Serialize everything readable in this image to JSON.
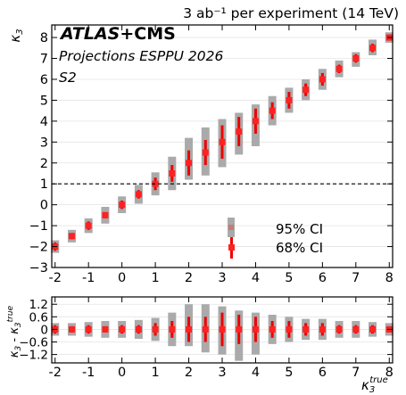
{
  "header": {
    "top_right_label": "3 ab⁻¹ per experiment (14 TeV)",
    "atlas": "ATLAS",
    "plus_cms": "+CMS",
    "projections": "Projections ESPPU 2026",
    "scenario": "S2"
  },
  "axes": {
    "top_ylabel": "κ",
    "top_ylabel_sub": "3",
    "bottom_ylabel_main": "κ",
    "bottom_ylabel_sub": "3",
    "bottom_ylabel_minus": " - κ",
    "bottom_ylabel_sub2": "3",
    "bottom_ylabel_sup2": "true",
    "xlabel_main": "κ",
    "xlabel_sub": "3",
    "xlabel_sup": "true"
  },
  "legend": {
    "ci95": "95% CI",
    "ci68": "68% CI"
  },
  "colors": {
    "ci95": "#aaaaaa",
    "ci68": "#ee0000",
    "marker": "#ff2222",
    "hline": "#000000"
  },
  "chart_data": [
    {
      "type": "scatter",
      "panel": "main",
      "x": [
        -2,
        -1.5,
        -1,
        -0.5,
        0,
        0.5,
        1,
        1.5,
        2,
        2.5,
        3,
        3.5,
        4,
        4.5,
        5,
        5.5,
        6,
        6.5,
        7,
        7.5,
        8
      ],
      "y": [
        -2,
        -1.5,
        -1,
        -0.5,
        0,
        0.5,
        1,
        1.5,
        2,
        2.5,
        3,
        3.5,
        4,
        4.5,
        5,
        5.5,
        6,
        6.5,
        7,
        7.5,
        8
      ],
      "ci68": [
        [
          -2.2,
          -1.8
        ],
        [
          -1.65,
          -1.35
        ],
        [
          -1.2,
          -0.8
        ],
        [
          -0.65,
          -0.35
        ],
        [
          -0.2,
          0.2
        ],
        [
          0.3,
          0.7
        ],
        [
          0.7,
          1.3
        ],
        [
          1.1,
          1.9
        ],
        [
          1.4,
          2.6
        ],
        [
          1.9,
          3.1
        ],
        [
          2.2,
          3.8
        ],
        [
          2.8,
          4.2
        ],
        [
          3.4,
          4.6
        ],
        [
          4.1,
          4.9
        ],
        [
          4.6,
          5.4
        ],
        [
          5.2,
          5.8
        ],
        [
          5.7,
          6.3
        ],
        [
          6.3,
          6.7
        ],
        [
          6.8,
          7.2
        ],
        [
          7.3,
          7.7
        ],
        [
          7.85,
          8.15
        ]
      ],
      "ci95": [
        [
          -2.3,
          -1.7
        ],
        [
          -1.8,
          -1.2
        ],
        [
          -1.35,
          -0.65
        ],
        [
          -0.9,
          -0.1
        ],
        [
          -0.4,
          0.4
        ],
        [
          0.05,
          0.95
        ],
        [
          0.45,
          1.55
        ],
        [
          0.7,
          2.3
        ],
        [
          1.2,
          3.2
        ],
        [
          1.4,
          3.7
        ],
        [
          1.8,
          4.1
        ],
        [
          2.4,
          4.4
        ],
        [
          2.8,
          4.8
        ],
        [
          3.8,
          5.2
        ],
        [
          4.4,
          5.6
        ],
        [
          5.0,
          6.0
        ],
        [
          5.5,
          6.5
        ],
        [
          6.1,
          6.9
        ],
        [
          6.6,
          7.3
        ],
        [
          7.15,
          7.9
        ],
        [
          7.75,
          8.25
        ]
      ],
      "xlim": [
        -2.1,
        8.1
      ],
      "ylim": [
        -3,
        8.6
      ],
      "yticks": [
        -3,
        -2,
        -1,
        0,
        1,
        2,
        3,
        4,
        5,
        6,
        7,
        8
      ],
      "ytick_labels": [
        "−3",
        "−2",
        "−1",
        "0",
        "1",
        "2",
        "3",
        "4",
        "5",
        "6",
        "7",
        "8"
      ],
      "reference_line_y": 1,
      "grid": true
    },
    {
      "type": "scatter",
      "panel": "residual",
      "x": [
        -2,
        -1.5,
        -1,
        -0.5,
        0,
        0.5,
        1,
        1.5,
        2,
        2.5,
        3,
        3.5,
        4,
        4.5,
        5,
        5.5,
        6,
        6.5,
        7,
        7.5,
        8
      ],
      "y": [
        0,
        0,
        0,
        0,
        0,
        0,
        0,
        0,
        0,
        0,
        0,
        0,
        0,
        0,
        0,
        0,
        0,
        0,
        0,
        0,
        0
      ],
      "ci68": [
        [
          -0.2,
          0.2
        ],
        [
          -0.15,
          0.15
        ],
        [
          -0.2,
          0.2
        ],
        [
          -0.15,
          0.15
        ],
        [
          -0.2,
          0.2
        ],
        [
          -0.2,
          0.2
        ],
        [
          -0.3,
          0.3
        ],
        [
          -0.4,
          0.4
        ],
        [
          -0.6,
          0.6
        ],
        [
          -0.6,
          0.6
        ],
        [
          -0.8,
          0.8
        ],
        [
          -0.7,
          0.7
        ],
        [
          -0.6,
          0.6
        ],
        [
          -0.4,
          0.4
        ],
        [
          -0.4,
          0.4
        ],
        [
          -0.3,
          0.3
        ],
        [
          -0.3,
          0.3
        ],
        [
          -0.2,
          0.2
        ],
        [
          -0.2,
          0.2
        ],
        [
          -0.2,
          0.2
        ],
        [
          -0.15,
          0.15
        ]
      ],
      "ci95": [
        [
          -0.3,
          0.3
        ],
        [
          -0.3,
          0.3
        ],
        [
          -0.35,
          0.35
        ],
        [
          -0.4,
          0.4
        ],
        [
          -0.4,
          0.4
        ],
        [
          -0.45,
          0.45
        ],
        [
          -0.55,
          0.55
        ],
        [
          -0.8,
          0.8
        ],
        [
          -0.8,
          1.2
        ],
        [
          -1.1,
          1.2
        ],
        [
          -1.2,
          1.1
        ],
        [
          -1.5,
          0.9
        ],
        [
          -1.2,
          0.8
        ],
        [
          -0.7,
          0.7
        ],
        [
          -0.6,
          0.6
        ],
        [
          -0.5,
          0.5
        ],
        [
          -0.5,
          0.5
        ],
        [
          -0.4,
          0.4
        ],
        [
          -0.4,
          0.4
        ],
        [
          -0.35,
          0.35
        ],
        [
          -0.3,
          0.3
        ]
      ],
      "xlim": [
        -2.1,
        8.1
      ],
      "ylim": [
        -1.6,
        1.55
      ],
      "yticks": [
        -1.2,
        -0.6,
        0,
        0.6,
        1.2
      ],
      "ytick_labels": [
        "−1.2",
        "−0.6",
        "0",
        "0.6",
        "1.2"
      ],
      "xticks": [
        -2,
        -1,
        0,
        1,
        2,
        3,
        4,
        5,
        6,
        7,
        8
      ],
      "xtick_labels": [
        "-2",
        "-1",
        "0",
        "1",
        "2",
        "3",
        "4",
        "5",
        "6",
        "7",
        "8"
      ],
      "grid": true
    }
  ]
}
